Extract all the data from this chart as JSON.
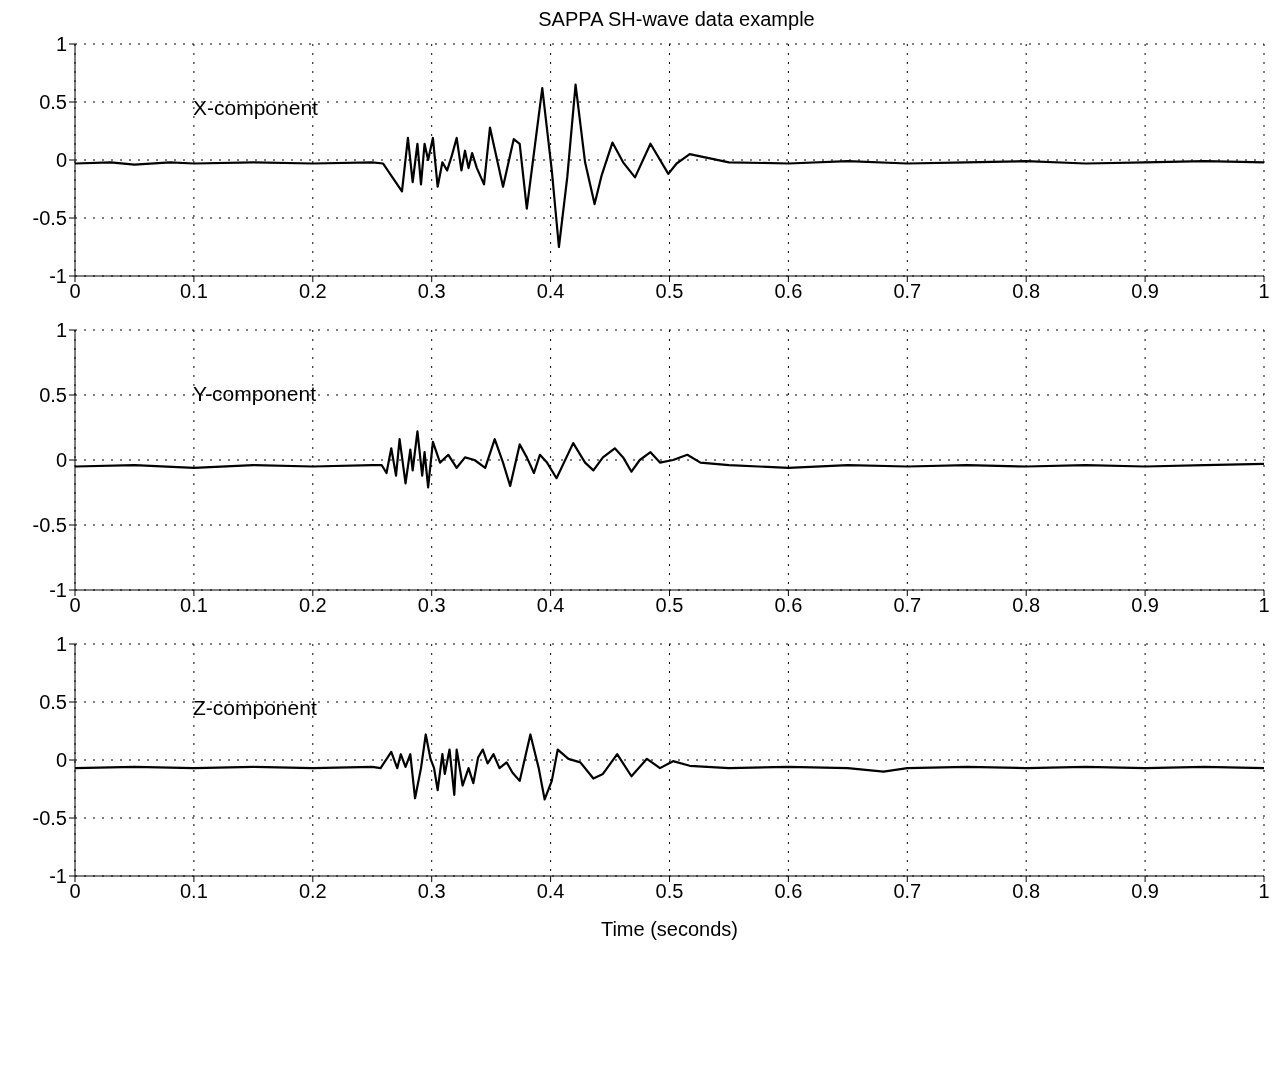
{
  "chart_data": [
    {
      "type": "line",
      "title": "SAPPA SH-wave data example",
      "annotations": [
        "X-component"
      ],
      "xlim": [
        0,
        1
      ],
      "xticks": [
        0,
        0.1,
        0.2,
        0.3,
        0.4,
        0.5,
        0.6,
        0.7,
        0.8,
        0.9,
        1
      ],
      "ylim": [
        -1,
        1
      ],
      "yticks": [
        -1,
        -0.5,
        0,
        0.5,
        1
      ],
      "grid": true,
      "x": [
        0,
        0.03,
        0.05,
        0.08,
        0.1,
        0.15,
        0.2,
        0.25,
        0.259,
        0.275,
        0.28,
        0.284,
        0.288,
        0.291,
        0.294,
        0.297,
        0.301,
        0.305,
        0.309,
        0.313,
        0.317,
        0.321,
        0.325,
        0.328,
        0.331,
        0.334,
        0.338,
        0.344,
        0.349,
        0.352,
        0.36,
        0.369,
        0.374,
        0.38,
        0.393,
        0.401,
        0.407,
        0.414,
        0.421,
        0.429,
        0.437,
        0.443,
        0.452,
        0.461,
        0.471,
        0.484,
        0.499,
        0.506,
        0.517,
        0.55,
        0.6,
        0.65,
        0.7,
        0.75,
        0.8,
        0.85,
        0.9,
        0.95,
        1
      ],
      "series": [
        {
          "color": "#000000",
          "values": [
            -0.03,
            -0.02,
            -0.04,
            -0.02,
            -0.03,
            -0.02,
            -0.03,
            -0.02,
            -0.03,
            -0.27,
            0.19,
            -0.19,
            0.14,
            -0.21,
            0.14,
            0,
            0.19,
            -0.23,
            -0.02,
            -0.09,
            0.04,
            0.19,
            -0.09,
            0.08,
            -0.07,
            0.06,
            -0.07,
            -0.21,
            0.28,
            0.14,
            -0.23,
            0.18,
            0.14,
            -0.42,
            0.62,
            -0.09,
            -0.75,
            -0.15,
            0.65,
            -0.02,
            -0.38,
            -0.13,
            0.15,
            -0.02,
            -0.15,
            0.14,
            -0.12,
            -0.03,
            0.05,
            -0.02,
            -0.03,
            -0.01,
            -0.03,
            -0.02,
            -0.01,
            -0.03,
            -0.02,
            -0.01,
            -0.02
          ]
        }
      ]
    },
    {
      "type": "line",
      "annotations": [
        "Y-component"
      ],
      "xlim": [
        0,
        1
      ],
      "xticks": [
        0,
        0.1,
        0.2,
        0.3,
        0.4,
        0.5,
        0.6,
        0.7,
        0.8,
        0.9,
        1
      ],
      "ylim": [
        -1,
        1
      ],
      "yticks": [
        -1,
        -0.5,
        0,
        0.5,
        1
      ],
      "grid": true,
      "x": [
        0,
        0.05,
        0.1,
        0.15,
        0.2,
        0.25,
        0.258,
        0.262,
        0.266,
        0.27,
        0.273,
        0.278,
        0.282,
        0.284,
        0.288,
        0.292,
        0.294,
        0.297,
        0.301,
        0.307,
        0.314,
        0.321,
        0.328,
        0.336,
        0.345,
        0.353,
        0.36,
        0.366,
        0.374,
        0.38,
        0.386,
        0.391,
        0.397,
        0.405,
        0.419,
        0.429,
        0.436,
        0.444,
        0.454,
        0.461,
        0.468,
        0.475,
        0.484,
        0.492,
        0.503,
        0.515,
        0.526,
        0.55,
        0.6,
        0.65,
        0.7,
        0.75,
        0.8,
        0.85,
        0.9,
        0.95,
        1
      ],
      "series": [
        {
          "color": "#000000",
          "values": [
            -0.05,
            -0.04,
            -0.06,
            -0.04,
            -0.05,
            -0.04,
            -0.04,
            -0.1,
            0.09,
            -0.12,
            0.16,
            -0.18,
            0.08,
            -0.08,
            0.22,
            -0.12,
            0.06,
            -0.21,
            0.14,
            -0.02,
            0.04,
            -0.06,
            0.02,
            0,
            -0.06,
            0.16,
            -0.02,
            -0.2,
            0.12,
            0.02,
            -0.1,
            0.04,
            -0.02,
            -0.14,
            0.13,
            -0.02,
            -0.08,
            0.02,
            0.09,
            0.02,
            -0.09,
            0,
            0.06,
            -0.02,
            0,
            0.04,
            -0.02,
            -0.04,
            -0.06,
            -0.04,
            -0.05,
            -0.04,
            -0.05,
            -0.04,
            -0.05,
            -0.04,
            -0.03
          ]
        }
      ]
    },
    {
      "type": "line",
      "annotations": [
        "Z-component"
      ],
      "xlabel": "Time (seconds)",
      "xlim": [
        0,
        1
      ],
      "xticks": [
        0,
        0.1,
        0.2,
        0.3,
        0.4,
        0.5,
        0.6,
        0.7,
        0.8,
        0.9,
        1
      ],
      "ylim": [
        -1,
        1
      ],
      "yticks": [
        -1,
        -0.5,
        0,
        0.5,
        1
      ],
      "grid": true,
      "x": [
        0,
        0.05,
        0.1,
        0.15,
        0.2,
        0.25,
        0.257,
        0.266,
        0.271,
        0.274,
        0.278,
        0.282,
        0.286,
        0.291,
        0.295,
        0.299,
        0.302,
        0.305,
        0.309,
        0.311,
        0.315,
        0.319,
        0.321,
        0.326,
        0.331,
        0.335,
        0.339,
        0.343,
        0.347,
        0.352,
        0.357,
        0.363,
        0.368,
        0.374,
        0.383,
        0.39,
        0.395,
        0.401,
        0.406,
        0.415,
        0.425,
        0.436,
        0.444,
        0.456,
        0.468,
        0.481,
        0.492,
        0.503,
        0.517,
        0.55,
        0.6,
        0.65,
        0.68,
        0.7,
        0.75,
        0.8,
        0.85,
        0.9,
        0.95,
        1
      ],
      "series": [
        {
          "color": "#000000",
          "values": [
            -0.07,
            -0.06,
            -0.07,
            -0.06,
            -0.07,
            -0.06,
            -0.07,
            0.07,
            -0.07,
            0.05,
            -0.06,
            0.05,
            -0.33,
            -0.07,
            0.22,
            0.01,
            -0.07,
            -0.26,
            0.05,
            -0.12,
            0.09,
            -0.3,
            0.09,
            -0.22,
            -0.07,
            -0.2,
            0.02,
            0.09,
            -0.03,
            0.05,
            -0.07,
            -0.02,
            -0.11,
            -0.18,
            0.22,
            -0.07,
            -0.34,
            -0.18,
            0.09,
            0.01,
            -0.02,
            -0.16,
            -0.12,
            0.05,
            -0.14,
            0.01,
            -0.07,
            -0.01,
            -0.05,
            -0.07,
            -0.06,
            -0.07,
            -0.1,
            -0.07,
            -0.06,
            -0.07,
            -0.06,
            -0.07,
            -0.06,
            -0.07
          ]
        }
      ]
    }
  ]
}
